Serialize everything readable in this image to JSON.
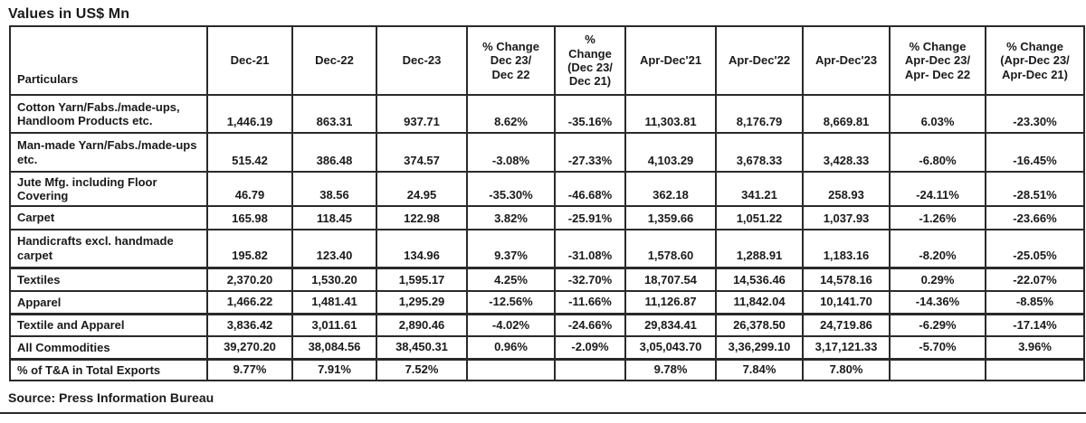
{
  "title": "Values in US$ Mn",
  "source_note": "Source: Press Information Bureau",
  "colors": {
    "text": "#1a1a1e",
    "border": "#2a2a2a",
    "background": "#ffffff"
  },
  "chart_data": {
    "type": "table",
    "title": "Values in US$ Mn",
    "columns": [
      "Particulars",
      "Dec-21",
      "Dec-22",
      "Dec-23",
      "% Change\nDec 23/\nDec 22",
      "%\nChange\n(Dec 23/\nDec 21)",
      "Apr-Dec'21",
      "Apr-Dec'22",
      "Apr-Dec'23",
      "% Change\nApr-Dec 23/\nApr- Dec 22",
      "% Change\n(Apr-Dec 23/\nApr-Dec 21)"
    ],
    "rows": [
      [
        "Cotton Yarn/Fabs./made-ups, Handloom Products etc.",
        "1,446.19",
        "863.31",
        "937.71",
        "8.62%",
        "-35.16%",
        "11,303.81",
        "8,176.79",
        "8,669.81",
        "6.03%",
        "-23.30%"
      ],
      [
        "Man-made Yarn/Fabs./made-ups etc.",
        "515.42",
        "386.48",
        "374.57",
        "-3.08%",
        "-27.33%",
        "4,103.29",
        "3,678.33",
        "3,428.33",
        "-6.80%",
        "-16.45%"
      ],
      [
        "Jute Mfg. including Floor Covering",
        "46.79",
        "38.56",
        "24.95",
        "-35.30%",
        "-46.68%",
        "362.18",
        "341.21",
        "258.93",
        "-24.11%",
        "-28.51%"
      ],
      [
        "Carpet",
        "165.98",
        "118.45",
        "122.98",
        "3.82%",
        "-25.91%",
        "1,359.66",
        "1,051.22",
        "1,037.93",
        "-1.26%",
        "-23.66%"
      ],
      [
        "Handicrafts excl. handmade carpet",
        "195.82",
        "123.40",
        "134.96",
        "9.37%",
        "-31.08%",
        "1,578.60",
        "1,288.91",
        "1,183.16",
        "-8.20%",
        "-25.05%"
      ],
      [
        "Textiles",
        "2,370.20",
        "1,530.20",
        "1,595.17",
        "4.25%",
        "-32.70%",
        "18,707.54",
        "14,536.46",
        "14,578.16",
        "0.29%",
        "-22.07%"
      ],
      [
        "Apparel",
        "1,466.22",
        "1,481.41",
        "1,295.29",
        "-12.56%",
        "-11.66%",
        "11,126.87",
        "11,842.04",
        "10,141.70",
        "-14.36%",
        "-8.85%"
      ],
      [
        "Textile and Apparel",
        "3,836.42",
        "3,011.61",
        "2,890.46",
        "-4.02%",
        "-24.66%",
        "29,834.41",
        "26,378.50",
        "24,719.86",
        "-6.29%",
        "-17.14%"
      ],
      [
        "All Commodities",
        "39,270.20",
        "38,084.56",
        "38,450.31",
        "0.96%",
        "-2.09%",
        "3,05,043.70",
        "3,36,299.10",
        "3,17,121.33",
        "-5.70%",
        "3.96%"
      ],
      [
        "% of T&A in Total Exports",
        "9.77%",
        "7.91%",
        "7.52%",
        "",
        "",
        "9.78%",
        "7.84%",
        "7.80%",
        "",
        ""
      ]
    ]
  }
}
